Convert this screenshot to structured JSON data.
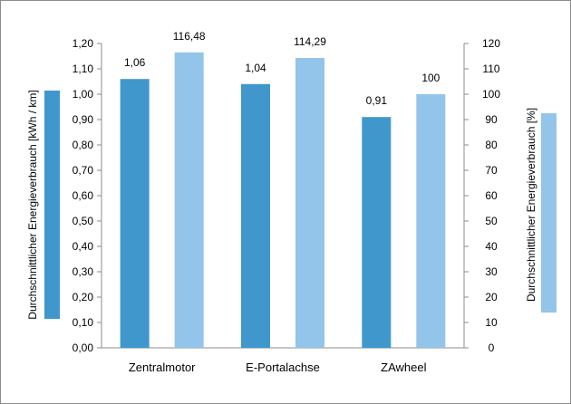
{
  "chart_data": {
    "type": "bar",
    "categories": [
      "Zentralmotor",
      "E-Portalachse",
      "ZAwheel"
    ],
    "series": [
      {
        "name": "Durchschnittlicher Energieverbrauch [kWh / km]",
        "axis": "left",
        "color": "#3f97cc",
        "values": [
          1.06,
          1.04,
          0.91
        ],
        "labels": [
          "1,06",
          "1,04",
          "0,91"
        ]
      },
      {
        "name": "Durchschnittlicher Energieverbrauch [%]",
        "axis": "right",
        "color": "#93c4ea",
        "values": [
          116.48,
          114.29,
          100
        ],
        "labels": [
          "116,48",
          "114,29",
          "100"
        ]
      }
    ],
    "y_left": {
      "label": "Durchschnittlicher Energieverbrauch [kWh / km]",
      "min": 0,
      "max": 1.2,
      "ticks": [
        "0,00",
        "0,10",
        "0,20",
        "0,30",
        "0,40",
        "0,50",
        "0,60",
        "0,70",
        "0,80",
        "0,90",
        "1,00",
        "1,10",
        "1,20"
      ]
    },
    "y_right": {
      "label": "Durchschnittlicher Energieverbrauch [%]",
      "min": 0,
      "max": 120,
      "ticks": [
        "0",
        "10",
        "20",
        "30",
        "40",
        "50",
        "60",
        "70",
        "80",
        "90",
        "100",
        "110",
        "120"
      ]
    },
    "grid": false,
    "legend": "axis-side color keys"
  }
}
